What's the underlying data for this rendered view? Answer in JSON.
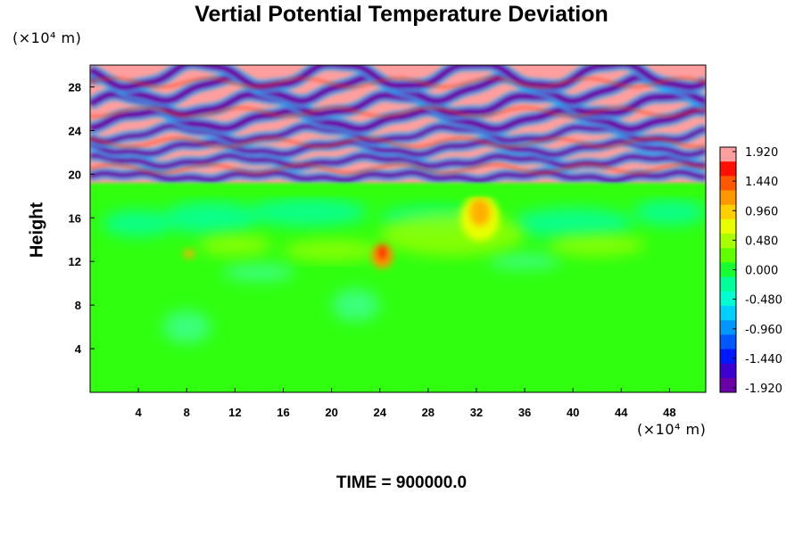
{
  "chart_data": {
    "type": "heatmap",
    "title": "Vertial Potential Temperature Deviation",
    "ylabel": "Height",
    "y_unit": "(×10⁴ m)",
    "x_unit": "(×10⁴ m)",
    "footer": "TIME = 900000.0",
    "x_ticks": [
      "4",
      "8",
      "12",
      "16",
      "20",
      "24",
      "28",
      "32",
      "36",
      "40",
      "44",
      "48"
    ],
    "y_ticks": [
      "4",
      "8",
      "12",
      "16",
      "20",
      "24",
      "28"
    ],
    "xlim": [
      0,
      51
    ],
    "ylim": [
      0,
      30
    ],
    "colorbar": {
      "min": -1.92,
      "max": 1.92,
      "labels": [
        "1.920",
        "1.440",
        "0.960",
        "0.480",
        "0.000",
        "-0.480",
        "-0.960",
        "-1.440",
        "-1.920"
      ],
      "levels": 17
    },
    "palette": [
      "#6a00a8",
      "#3b00d0",
      "#0018ff",
      "#0058ff",
      "#0098ff",
      "#00d0ff",
      "#00ffd0",
      "#00ff98",
      "#18ff30",
      "#60ff00",
      "#a8ff00",
      "#e8ff00",
      "#ffd000",
      "#ff9800",
      "#ff5800",
      "#ff1000",
      "#ff9e9e"
    ],
    "features": [
      {
        "name": "stratospheric-bands",
        "y_range": [
          19,
          30
        ]
      },
      {
        "name": "warm-anomaly-center",
        "x": 32,
        "y": 16
      },
      {
        "name": "warm-anomaly-west",
        "x": 24,
        "y": 12.5
      }
    ]
  }
}
